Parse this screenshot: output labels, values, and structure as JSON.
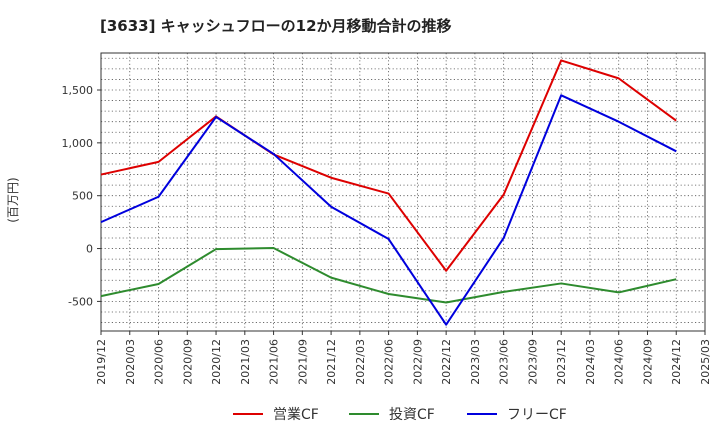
{
  "chart_data": {
    "type": "line",
    "title": "[3633]  キャッシュフローの12か月移動合計の推移",
    "ylabel": "(百万円)",
    "xlabel": "",
    "ylim": [
      -780,
      1850
    ],
    "yticks": [
      -500,
      0,
      500,
      1000,
      1500
    ],
    "ytick_labels": [
      "-500",
      "0",
      "500",
      "1,000",
      "1,500"
    ],
    "x": [
      "2019/12",
      "2020/03",
      "2020/06",
      "2020/09",
      "2020/12",
      "2021/03",
      "2021/06",
      "2021/09",
      "2021/12",
      "2022/03",
      "2022/06",
      "2022/09",
      "2022/12",
      "2023/03",
      "2023/06",
      "2023/09",
      "2023/12",
      "2024/03",
      "2024/06",
      "2024/09",
      "2024/12",
      "2025/03"
    ],
    "grid": true,
    "legend_position": "bottom",
    "series": [
      {
        "name": "営業CF",
        "color": "#dd0000",
        "points": [
          [
            "2019/12",
            700
          ],
          [
            "2020/06",
            820
          ],
          [
            "2020/12",
            1250
          ],
          [
            "2021/06",
            890
          ],
          [
            "2021/12",
            670
          ],
          [
            "2022/06",
            520
          ],
          [
            "2022/12",
            -210
          ],
          [
            "2023/06",
            510
          ],
          [
            "2023/12",
            1780
          ],
          [
            "2024/06",
            1610
          ],
          [
            "2024/12",
            1210
          ]
        ]
      },
      {
        "name": "投資CF",
        "color": "#2e8b2e",
        "points": [
          [
            "2019/12",
            -450
          ],
          [
            "2020/06",
            -335
          ],
          [
            "2020/12",
            -5
          ],
          [
            "2021/06",
            5
          ],
          [
            "2021/12",
            -275
          ],
          [
            "2022/06",
            -430
          ],
          [
            "2022/12",
            -510
          ],
          [
            "2023/06",
            -410
          ],
          [
            "2023/12",
            -330
          ],
          [
            "2024/06",
            -415
          ],
          [
            "2024/12",
            -290
          ]
        ]
      },
      {
        "name": "フリーCF",
        "color": "#0000dd",
        "points": [
          [
            "2019/12",
            250
          ],
          [
            "2020/06",
            490
          ],
          [
            "2020/12",
            1245
          ],
          [
            "2021/06",
            895
          ],
          [
            "2021/12",
            395
          ],
          [
            "2022/06",
            90
          ],
          [
            "2022/12",
            -720
          ],
          [
            "2023/06",
            100
          ],
          [
            "2023/12",
            1450
          ],
          [
            "2024/06",
            1200
          ],
          [
            "2024/12",
            920
          ]
        ]
      }
    ]
  }
}
